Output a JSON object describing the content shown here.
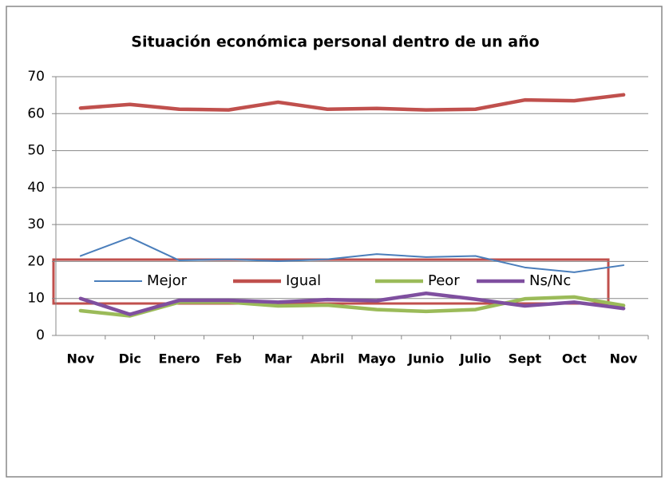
{
  "chart_data": {
    "type": "line",
    "title": "Situación económica personal dentro de un año",
    "categories": [
      "Nov",
      "Dic",
      "Enero",
      "Feb",
      "Mar",
      "Abril",
      "Mayo",
      "Junio",
      "Julio",
      "Sept",
      "Oct",
      "Nov"
    ],
    "series": [
      {
        "name": "Mejor",
        "color": "#4a7ebb",
        "width": 2,
        "values": [
          21.5,
          26.5,
          20.3,
          20.6,
          20.1,
          20.6,
          22.0,
          21.2,
          21.5,
          18.4,
          17.1,
          19.0
        ]
      },
      {
        "name": "Igual",
        "color": "#c0504d",
        "width": 4.5,
        "values": [
          61.5,
          62.5,
          61.2,
          61.0,
          63.1,
          61.2,
          61.4,
          61.0,
          61.2,
          63.7,
          63.5,
          65.1
        ]
      },
      {
        "name": "Peor",
        "color": "#9bbb59",
        "width": 4.5,
        "values": [
          6.7,
          5.3,
          9.0,
          9.0,
          8.0,
          8.2,
          7.0,
          6.5,
          7.0,
          9.9,
          10.4,
          8.1
        ]
      },
      {
        "name": "Ns/Nc",
        "color": "#7f4f9f",
        "width": 4.5,
        "values": [
          10.0,
          5.7,
          9.5,
          9.5,
          9.0,
          9.7,
          9.4,
          11.4,
          9.8,
          8.0,
          9.0,
          7.3
        ]
      }
    ],
    "ylim": [
      0,
      70
    ],
    "yticks": [
      0,
      10,
      20,
      30,
      40,
      50,
      60,
      70
    ],
    "grid": true,
    "legend": "bottom"
  }
}
